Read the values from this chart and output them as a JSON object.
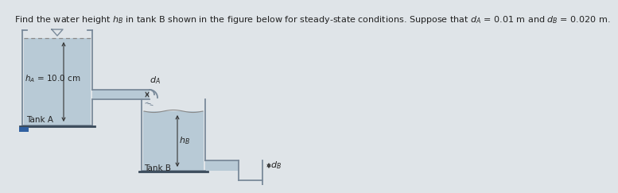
{
  "title": "Find the water height $h_B$ in tank B shown in the figure below for steady-state conditions. Suppose that $d_A$ = 0.01 m and $d_B$ = 0.020 m.",
  "title_fontsize": 8.0,
  "bg_color": "#dfe4e8",
  "tank_wall_color": "#7a8a9a",
  "tank_fill_color": "#b8cad6",
  "pipe_fill_color": "#b8cad6",
  "floor_color": "#7a8a9a",
  "label_hA": "$h_A$ = 10.0 cm",
  "label_tankA": "Tank A",
  "label_tankB": "Tank B",
  "label_dA": "$d_A$",
  "label_dB": "$d_B$",
  "label_hB": "$h_B$",
  "arrow_color": "#333333",
  "text_color": "#222222"
}
